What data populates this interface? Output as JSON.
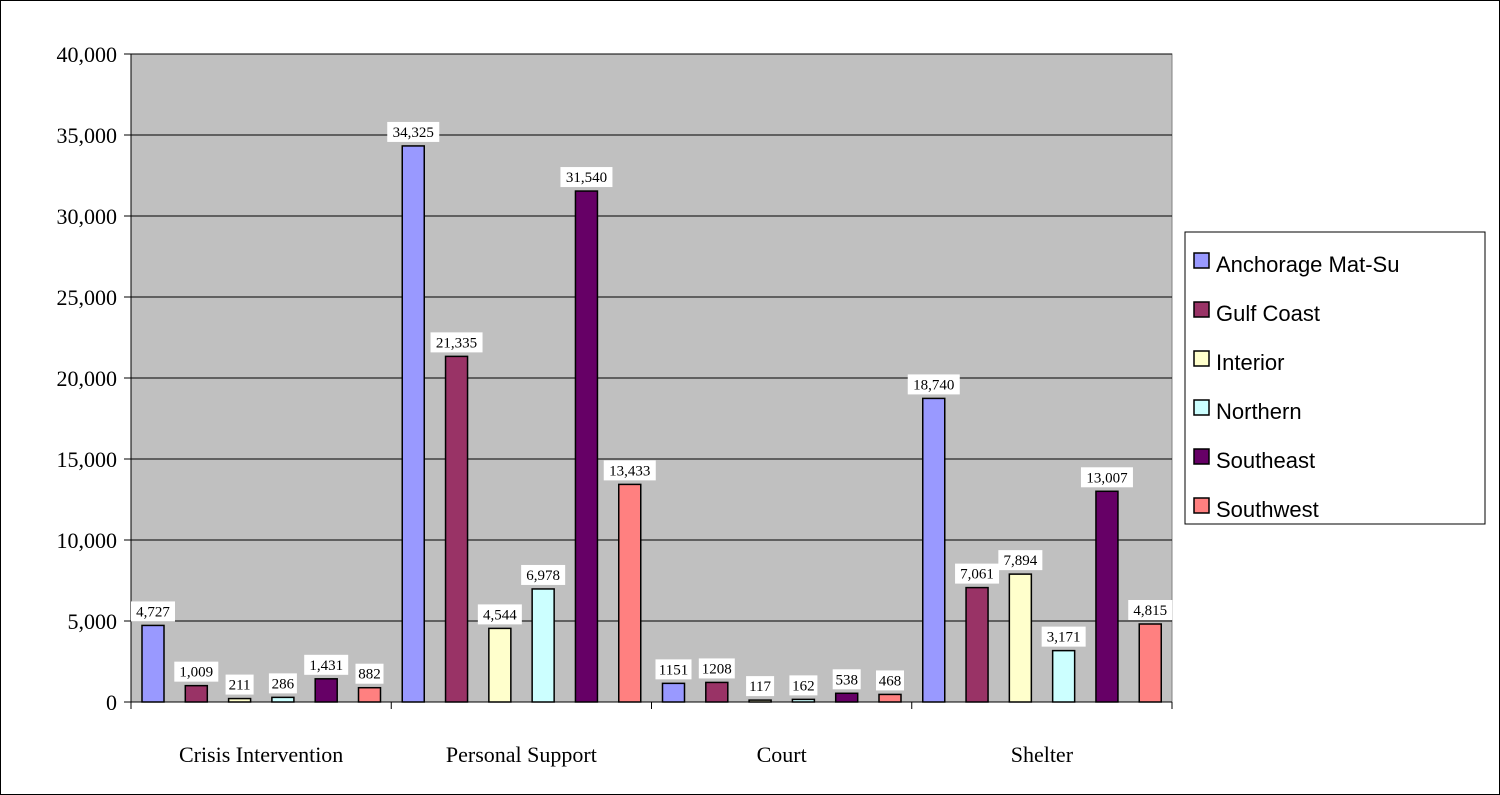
{
  "chart_data": {
    "type": "bar",
    "categories": [
      "Crisis Intervention",
      "Personal Support",
      "Court",
      "Shelter"
    ],
    "ylim": [
      0,
      40000
    ],
    "yticks": [
      0,
      5000,
      10000,
      15000,
      20000,
      25000,
      30000,
      35000,
      40000
    ],
    "ytick_labels": [
      "0",
      "5,000",
      "10,000",
      "15,000",
      "20,000",
      "25,000",
      "30,000",
      "35,000",
      "40,000"
    ],
    "grid": true,
    "legend_position": "right",
    "plot_background": "#C0C0C0",
    "series": [
      {
        "name": "Anchorage Mat-Su",
        "color": "#9999FF",
        "values": [
          4727,
          34325,
          1151,
          18740
        ],
        "labels": [
          "4,727",
          "34,325",
          "1151",
          "18,740"
        ]
      },
      {
        "name": "Gulf Coast",
        "color": "#993366",
        "values": [
          1009,
          21335,
          1208,
          7061
        ],
        "labels": [
          "1,009",
          "21,335",
          "1208",
          "7,061"
        ]
      },
      {
        "name": "Interior",
        "color": "#FFFFCC",
        "values": [
          211,
          4544,
          117,
          7894
        ],
        "labels": [
          "211",
          "4,544",
          "117",
          "7,894"
        ]
      },
      {
        "name": "Northern",
        "color": "#CCFFFF",
        "values": [
          286,
          6978,
          162,
          3171
        ],
        "labels": [
          "286",
          "6,978",
          "162",
          "3,171"
        ]
      },
      {
        "name": "Southeast",
        "color": "#660066",
        "values": [
          1431,
          31540,
          538,
          13007
        ],
        "labels": [
          "1,431",
          "31,540",
          "538",
          "13,007"
        ]
      },
      {
        "name": "Southwest",
        "color": "#FF8080",
        "values": [
          882,
          13433,
          468,
          4815
        ],
        "labels": [
          "882",
          "13,433",
          "468",
          "4,815"
        ]
      }
    ]
  }
}
